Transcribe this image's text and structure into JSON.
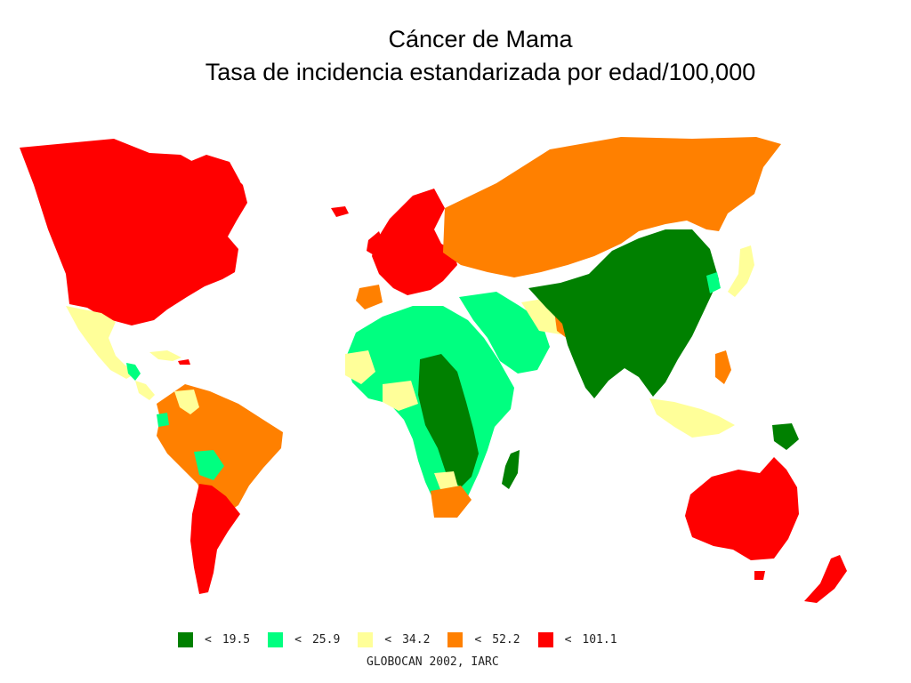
{
  "title": {
    "line1": "Cáncer de Mama",
    "line2": "Tasa de incidencia estandarizada por edad/100,000"
  },
  "colors": {
    "lt_19_5": "#008000",
    "lt_25_9": "#00ff80",
    "lt_34_2": "#ffff99",
    "lt_52_2": "#ff8000",
    "lt_101_1": "#ff0000"
  },
  "legend": [
    {
      "symbol": "<",
      "value": "19.5",
      "color": "#008000"
    },
    {
      "symbol": "<",
      "value": "25.9",
      "color": "#00ff80"
    },
    {
      "symbol": "<",
      "value": "34.2",
      "color": "#ffff99"
    },
    {
      "symbol": "<",
      "value": "52.2",
      "color": "#ff8000"
    },
    {
      "symbol": "<",
      "value": "101.1",
      "color": "#ff0000"
    }
  ],
  "source": "GLOBOCAN 2002, IARC"
}
